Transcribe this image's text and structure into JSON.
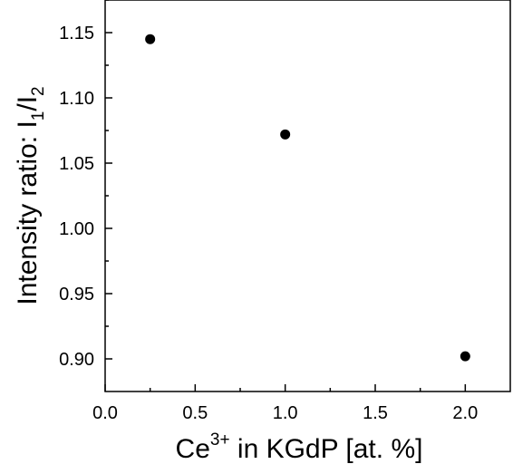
{
  "chart_data": {
    "type": "scatter",
    "title": "",
    "xlabel": {
      "base": "Ce",
      "sup": "3+",
      "rest": " in KGdP [at. %]"
    },
    "ylabel": {
      "base": "Intensity ratio: I",
      "sub1": "1",
      "mid": "/I",
      "sub2": "2"
    },
    "xlim": [
      0.0,
      2.25
    ],
    "ylim": [
      0.875,
      1.175
    ],
    "xticks": [
      "0.0",
      "0.5",
      "1.0",
      "1.5",
      "2.0"
    ],
    "yticks": [
      "0.90",
      "0.95",
      "1.00",
      "1.05",
      "1.10",
      "1.15"
    ],
    "grid": false,
    "legend": "none",
    "marker_color": "#000000",
    "points": [
      {
        "x": 0.25,
        "y": 1.145
      },
      {
        "x": 1.0,
        "y": 1.072
      },
      {
        "x": 2.0,
        "y": 0.902
      }
    ]
  }
}
